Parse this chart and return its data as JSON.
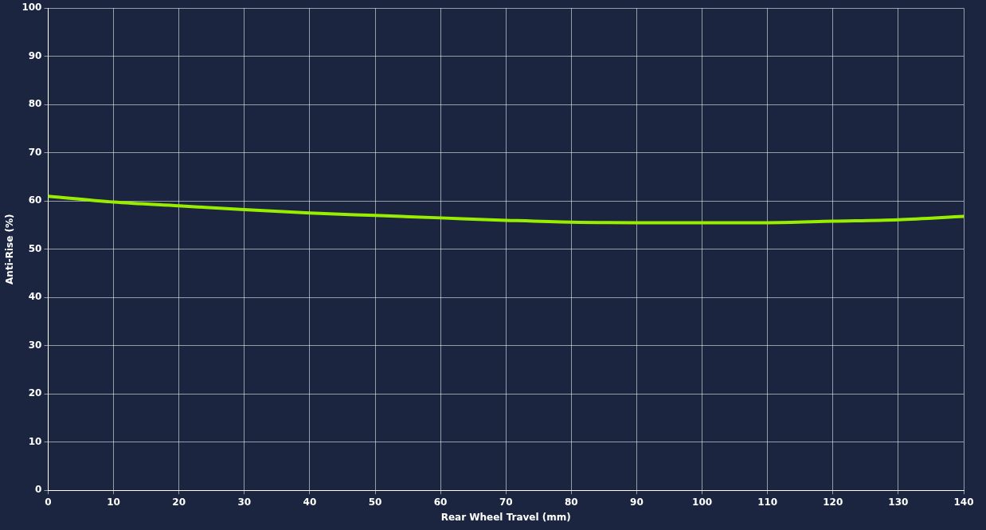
{
  "chart_data": {
    "type": "line",
    "xlabel": "Rear Wheel Travel (mm)",
    "ylabel": "Anti-Rise (%)",
    "series": [
      {
        "color": "#99ee00",
        "x": [
          0,
          10,
          20,
          30,
          40,
          50,
          60,
          70,
          80,
          90,
          100,
          110,
          120,
          130,
          140
        ],
        "values": [
          61.0,
          59.8,
          59.0,
          58.2,
          57.5,
          57.0,
          56.5,
          56.0,
          55.6,
          55.5,
          55.5,
          55.5,
          55.8,
          56.1,
          56.8
        ]
      }
    ],
    "xlim": [
      0,
      140
    ],
    "xticks": [
      0,
      10,
      20,
      30,
      40,
      50,
      60,
      70,
      80,
      90,
      100,
      110,
      120,
      130,
      140
    ],
    "ylim": [
      0,
      100
    ],
    "yticks": [
      0,
      10,
      20,
      30,
      40,
      50,
      60,
      70,
      80,
      90,
      100
    ],
    "grid": true,
    "legend": false,
    "marker": "none",
    "line_style": "solid"
  }
}
